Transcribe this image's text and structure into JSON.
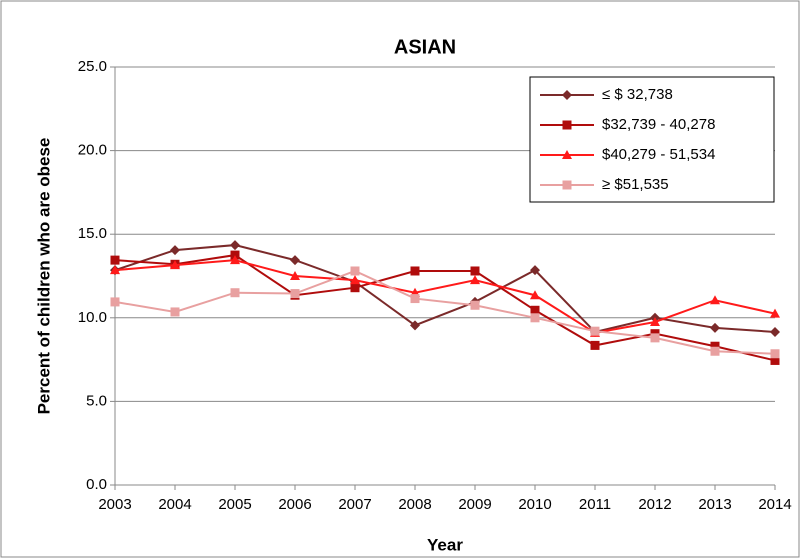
{
  "chart_data": {
    "type": "line",
    "title": "ASIAN",
    "x_label": "Year",
    "y_label": "Percent of children who are obese",
    "categories": [
      "2003",
      "2004",
      "2005",
      "2006",
      "2007",
      "2008",
      "2009",
      "2010",
      "2011",
      "2012",
      "2013",
      "2014"
    ],
    "series": [
      {
        "name": "≤ $ 32,738",
        "color": "#7b2a2a",
        "marker": "diamond",
        "values": [
          12.85,
          14.05,
          14.35,
          13.45,
          12.15,
          9.55,
          10.95,
          12.85,
          9.15,
          10.0,
          9.4,
          9.15
        ]
      },
      {
        "name": "$32,739 - 40,278",
        "color": "#b00c0c",
        "marker": "square",
        "values": [
          13.45,
          13.2,
          13.75,
          11.35,
          11.8,
          12.8,
          12.8,
          10.45,
          8.35,
          9.05,
          8.3,
          7.45
        ]
      },
      {
        "name": "$40,279 - 51,534",
        "color": "#ff1a1a",
        "marker": "triangle",
        "values": [
          12.85,
          13.15,
          13.45,
          12.5,
          12.25,
          11.5,
          12.25,
          11.35,
          9.1,
          9.75,
          11.05,
          10.25
        ]
      },
      {
        "name": "≥ $51,535",
        "color": "#e8a0a0",
        "marker": "square",
        "values": [
          10.95,
          10.35,
          11.5,
          11.45,
          12.8,
          11.15,
          10.75,
          10.0,
          9.2,
          8.8,
          8.0,
          7.85
        ]
      }
    ],
    "ylim": [
      0,
      25
    ],
    "yticks": [
      {
        "value": 0,
        "label": "0.0"
      },
      {
        "value": 5,
        "label": "5.0"
      },
      {
        "value": 10,
        "label": "10.0"
      },
      {
        "value": 15,
        "label": "15.0"
      },
      {
        "value": 20,
        "label": "20.0"
      },
      {
        "value": 25,
        "label": "25.0"
      }
    ],
    "grid": true,
    "legend": "top-right"
  }
}
